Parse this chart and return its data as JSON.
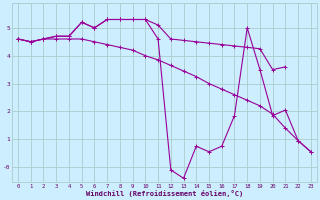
{
  "bg_color": "#cceeff",
  "grid_color": "#aacccc",
  "line_color": "#990099",
  "xlabel": "Windchill (Refroidissement éolien,°C)",
  "xlabel_color": "#660066",
  "tick_color": "#660066",
  "xlim": [
    -0.5,
    23.5
  ],
  "ylim": [
    -0.55,
    5.9
  ],
  "yticks": [
    0,
    1,
    2,
    3,
    4,
    5
  ],
  "ytick_labels": [
    "-0",
    "1",
    "2",
    "3",
    "4",
    "5"
  ],
  "xticks": [
    0,
    1,
    2,
    3,
    4,
    5,
    6,
    7,
    8,
    9,
    10,
    11,
    12,
    13,
    14,
    15,
    16,
    17,
    18,
    19,
    20,
    21,
    22,
    23
  ],
  "series1_x": [
    0,
    1,
    2,
    3,
    4,
    5,
    6,
    7,
    8,
    9,
    10,
    11,
    12,
    13,
    14,
    15,
    16,
    17,
    18,
    19,
    20,
    21,
    22,
    23
  ],
  "series1_y": [
    4.6,
    4.5,
    4.6,
    4.6,
    4.6,
    4.6,
    4.5,
    4.4,
    4.3,
    4.2,
    4.0,
    3.85,
    3.65,
    3.45,
    3.25,
    3.0,
    2.8,
    2.6,
    2.4,
    2.2,
    1.9,
    1.4,
    0.95,
    0.55
  ],
  "series2_x": [
    0,
    1,
    2,
    3,
    4,
    5,
    6,
    7,
    8,
    9,
    10,
    11,
    12,
    13,
    14,
    15,
    16,
    17,
    18,
    19,
    20,
    21,
    22,
    23
  ],
  "series2_y": [
    4.6,
    4.5,
    4.6,
    4.7,
    4.7,
    5.2,
    5.0,
    5.3,
    5.3,
    5.3,
    5.3,
    5.1,
    4.6,
    4.55,
    4.5,
    4.45,
    4.4,
    4.35,
    4.3,
    4.25,
    3.5,
    3.6,
    null,
    null
  ],
  "series3_x": [
    0,
    1,
    2,
    3,
    4,
    5,
    6,
    7,
    8,
    9,
    10,
    11,
    12,
    13,
    14,
    15,
    16,
    17,
    18,
    19,
    20,
    21,
    22,
    23
  ],
  "series3_y": [
    4.6,
    4.5,
    4.6,
    4.7,
    4.7,
    5.2,
    5.0,
    5.3,
    5.3,
    5.3,
    5.3,
    4.6,
    -0.1,
    -0.4,
    0.75,
    0.55,
    0.75,
    1.85,
    5.0,
    3.5,
    1.85,
    2.05,
    0.95,
    0.55
  ]
}
